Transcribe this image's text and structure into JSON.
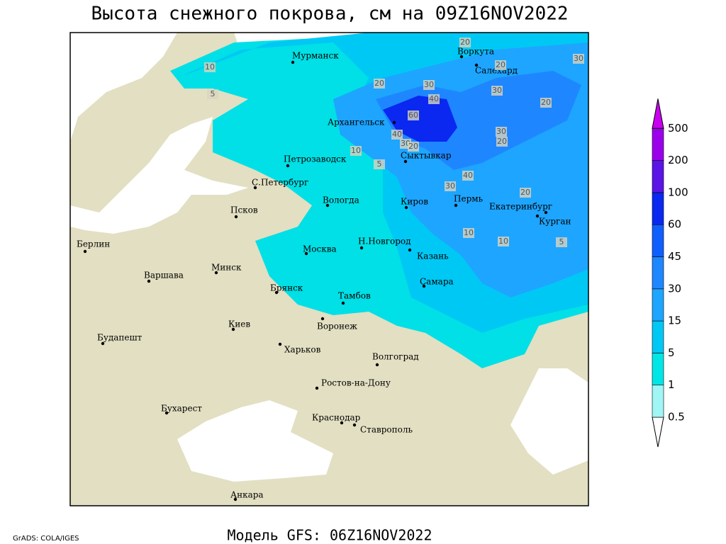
{
  "title": "Высота снежного покрова, см на 09Z16NOV2022",
  "model": "Модель GFS: 06Z16NOV2022",
  "credit": "GrADS: COLA/IGES",
  "cities": [
    "Мурманск",
    "Воркута",
    "Салехард",
    "Архангельск",
    "Сыктывкар",
    "Петрозаводск",
    "С.Петербург",
    "Вологда",
    "Киров",
    "Пермь",
    "Екатеринбург",
    "Курган",
    "Псков",
    "Берлин",
    "Москва",
    "Н.Новгород",
    "Казань",
    "Минск",
    "Варшава",
    "Самара",
    "Брянск",
    "Тамбов",
    "Киев",
    "Воронеж",
    "Будапешт",
    "Харьков",
    "Волгоград",
    "Ростов-на-Дону",
    "Бухарест",
    "Краснодар",
    "Ставрополь",
    "Анкара"
  ],
  "contour_labels": [
    10,
    5,
    30,
    40,
    60,
    10,
    5,
    40,
    30,
    20,
    40,
    30,
    20,
    20,
    30,
    20,
    10,
    10,
    5,
    30,
    20,
    30,
    20,
    20
  ],
  "colorbar": {
    "levels": [
      0.5,
      1,
      5,
      15,
      30,
      45,
      60,
      100,
      200,
      500
    ],
    "colors": [
      "#ffffff",
      "#a0f5f5",
      "#00e6e6",
      "#00c8f5",
      "#1ea5ff",
      "#1e87ff",
      "#0f5fff",
      "#0a28f0",
      "#5a14e6",
      "#9b00eb",
      "#c800f0"
    ]
  }
}
